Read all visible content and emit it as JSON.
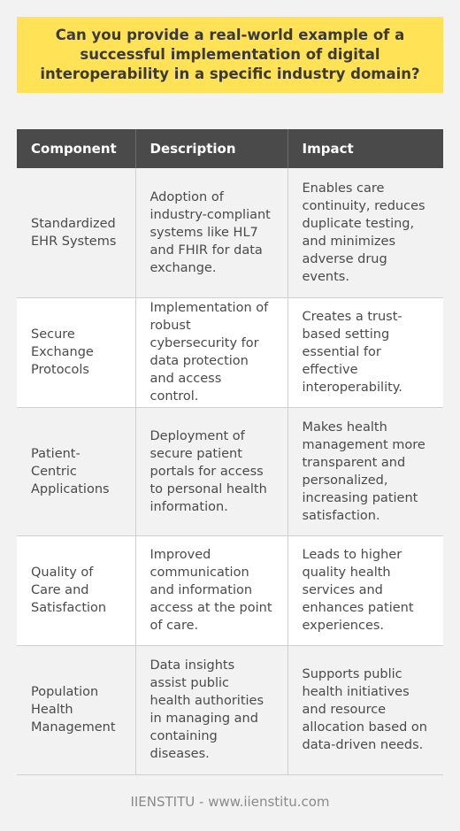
{
  "question": "Can you provide a real-world example of a successful implementation of digital interoperability in a specific industry domain?",
  "table": {
    "headers": [
      "Component",
      "Description",
      "Impact"
    ],
    "rows": [
      {
        "component": "Standardized EHR Systems",
        "description": "Adoption of industry-compliant systems like HL7 and FHIR for data exchange.",
        "impact": "Enables care continuity, reduces duplicate testing, and minimizes adverse drug events."
      },
      {
        "component": "Secure Exchange Protocols",
        "description": "Implementation of robust cybersecurity for data protection and access control.",
        "impact": "Creates a trust-based setting essential for effective interoperability."
      },
      {
        "component": "Patient-Centric Applications",
        "description": "Deployment of secure patient portals for access to personal health information.",
        "impact": "Makes health management more transparent and personalized, increasing patient satisfaction."
      },
      {
        "component": "Quality of Care and Satisfaction",
        "description": "Improved communication and information access at the point of care.",
        "impact": "Leads to higher quality health services and enhances patient experiences."
      },
      {
        "component": "Population Health Management",
        "description": "Data insights assist public health authorities in managing and containing diseases.",
        "impact": "Supports public health initiatives and resource allocation based on data-driven needs."
      }
    ]
  },
  "footer": "IIENSTITU - www.iienstitu.com"
}
